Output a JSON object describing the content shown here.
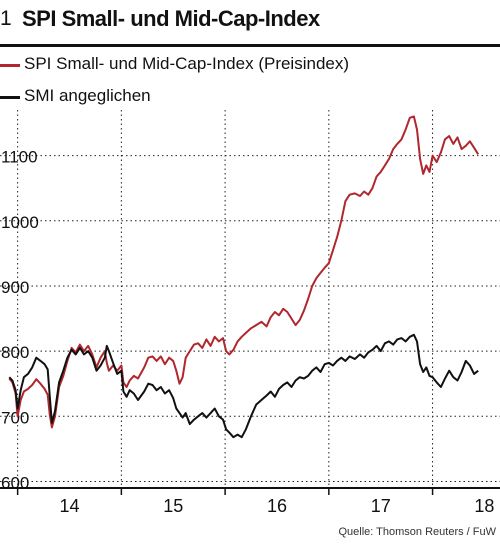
{
  "header": {
    "number": "1",
    "title": "SPI Small- und Mid-Cap-Index"
  },
  "legend": [
    {
      "label": "SPI Small- und Mid-Cap-Index (Preisindex)",
      "color": "#b0272d"
    },
    {
      "label": "SMI angeglichen",
      "color": "#111111"
    }
  ],
  "source": "Quelle: Thomson Reuters / FuW",
  "chart_data": {
    "type": "line",
    "title": "SPI Small- und Mid-Cap-Index",
    "xlabel": "",
    "ylabel": "",
    "ylim": [
      590,
      1170
    ],
    "xlim": [
      2013.83,
      2018.65
    ],
    "grid": true,
    "legend_position": "top-left",
    "y_ticks": [
      600,
      700,
      800,
      900,
      1000,
      1100
    ],
    "y_tick_labels": [
      "600",
      "700",
      "800",
      "900",
      "1000",
      "1100"
    ],
    "x_tick_labels": [
      {
        "label": "14",
        "x": 2014.5
      },
      {
        "label": "15",
        "x": 2015.5
      },
      {
        "label": "16",
        "x": 2016.5
      },
      {
        "label": "17",
        "x": 2017.5
      },
      {
        "label": "18",
        "x": 2018.5
      }
    ],
    "series": [
      {
        "name": "SPI Small- und Mid-Cap-Index (Preisindex)",
        "color": "#b0272d",
        "points": [
          [
            2013.92,
            758
          ],
          [
            2013.95,
            752
          ],
          [
            2013.98,
            735
          ],
          [
            2014.0,
            700
          ],
          [
            2014.03,
            725
          ],
          [
            2014.06,
            738
          ],
          [
            2014.1,
            742
          ],
          [
            2014.14,
            748
          ],
          [
            2014.18,
            757
          ],
          [
            2014.22,
            750
          ],
          [
            2014.26,
            742
          ],
          [
            2014.29,
            733
          ],
          [
            2014.31,
            702
          ],
          [
            2014.33,
            683
          ],
          [
            2014.36,
            700
          ],
          [
            2014.4,
            745
          ],
          [
            2014.44,
            762
          ],
          [
            2014.48,
            785
          ],
          [
            2014.52,
            805
          ],
          [
            2014.56,
            798
          ],
          [
            2014.6,
            810
          ],
          [
            2014.64,
            800
          ],
          [
            2014.68,
            808
          ],
          [
            2014.72,
            795
          ],
          [
            2014.76,
            775
          ],
          [
            2014.8,
            790
          ],
          [
            2014.84,
            800
          ],
          [
            2014.86,
            782
          ],
          [
            2014.88,
            770
          ],
          [
            2014.92,
            778
          ],
          [
            2014.96,
            770
          ],
          [
            2015.0,
            778
          ],
          [
            2015.02,
            752
          ],
          [
            2015.05,
            745
          ],
          [
            2015.08,
            755
          ],
          [
            2015.12,
            762
          ],
          [
            2015.16,
            758
          ],
          [
            2015.22,
            775
          ],
          [
            2015.26,
            790
          ],
          [
            2015.3,
            792
          ],
          [
            2015.34,
            785
          ],
          [
            2015.38,
            792
          ],
          [
            2015.42,
            780
          ],
          [
            2015.46,
            790
          ],
          [
            2015.5,
            785
          ],
          [
            2015.53,
            770
          ],
          [
            2015.56,
            750
          ],
          [
            2015.59,
            760
          ],
          [
            2015.62,
            790
          ],
          [
            2015.66,
            800
          ],
          [
            2015.7,
            810
          ],
          [
            2015.74,
            812
          ],
          [
            2015.78,
            805
          ],
          [
            2015.82,
            818
          ],
          [
            2015.86,
            808
          ],
          [
            2015.9,
            822
          ],
          [
            2015.94,
            815
          ],
          [
            2015.98,
            820
          ],
          [
            2016.01,
            800
          ],
          [
            2016.04,
            795
          ],
          [
            2016.08,
            802
          ],
          [
            2016.12,
            815
          ],
          [
            2016.16,
            822
          ],
          [
            2016.2,
            828
          ],
          [
            2016.25,
            835
          ],
          [
            2016.3,
            840
          ],
          [
            2016.35,
            845
          ],
          [
            2016.4,
            838
          ],
          [
            2016.44,
            852
          ],
          [
            2016.48,
            860
          ],
          [
            2016.52,
            855
          ],
          [
            2016.56,
            865
          ],
          [
            2016.6,
            860
          ],
          [
            2016.64,
            850
          ],
          [
            2016.68,
            840
          ],
          [
            2016.72,
            848
          ],
          [
            2016.76,
            862
          ],
          [
            2016.8,
            880
          ],
          [
            2016.84,
            900
          ],
          [
            2016.88,
            912
          ],
          [
            2016.92,
            920
          ],
          [
            2016.96,
            928
          ],
          [
            2017.0,
            935
          ],
          [
            2017.04,
            955
          ],
          [
            2017.08,
            975
          ],
          [
            2017.12,
            1000
          ],
          [
            2017.16,
            1030
          ],
          [
            2017.2,
            1040
          ],
          [
            2017.25,
            1042
          ],
          [
            2017.3,
            1038
          ],
          [
            2017.34,
            1045
          ],
          [
            2017.38,
            1040
          ],
          [
            2017.42,
            1050
          ],
          [
            2017.46,
            1068
          ],
          [
            2017.5,
            1075
          ],
          [
            2017.54,
            1085
          ],
          [
            2017.58,
            1095
          ],
          [
            2017.62,
            1110
          ],
          [
            2017.66,
            1118
          ],
          [
            2017.7,
            1125
          ],
          [
            2017.74,
            1140
          ],
          [
            2017.78,
            1158
          ],
          [
            2017.82,
            1160
          ],
          [
            2017.85,
            1140
          ],
          [
            2017.88,
            1095
          ],
          [
            2017.91,
            1072
          ],
          [
            2017.94,
            1085
          ],
          [
            2017.97,
            1075
          ],
          [
            2018.0,
            1100
          ],
          [
            2018.04,
            1090
          ],
          [
            2018.08,
            1105
          ],
          [
            2018.12,
            1125
          ],
          [
            2018.16,
            1130
          ],
          [
            2018.2,
            1118
          ],
          [
            2018.24,
            1128
          ],
          [
            2018.28,
            1110
          ],
          [
            2018.32,
            1115
          ],
          [
            2018.36,
            1122
          ],
          [
            2018.4,
            1112
          ],
          [
            2018.44,
            1102
          ]
        ]
      },
      {
        "name": "SMI angeglichen",
        "color": "#111111",
        "points": [
          [
            2013.92,
            760
          ],
          [
            2013.95,
            755
          ],
          [
            2013.98,
            740
          ],
          [
            2014.0,
            712
          ],
          [
            2014.03,
            740
          ],
          [
            2014.06,
            760
          ],
          [
            2014.1,
            765
          ],
          [
            2014.14,
            775
          ],
          [
            2014.18,
            790
          ],
          [
            2014.22,
            785
          ],
          [
            2014.26,
            780
          ],
          [
            2014.29,
            772
          ],
          [
            2014.31,
            730
          ],
          [
            2014.33,
            690
          ],
          [
            2014.36,
            708
          ],
          [
            2014.4,
            752
          ],
          [
            2014.44,
            770
          ],
          [
            2014.48,
            790
          ],
          [
            2014.52,
            802
          ],
          [
            2014.56,
            795
          ],
          [
            2014.6,
            805
          ],
          [
            2014.64,
            795
          ],
          [
            2014.68,
            800
          ],
          [
            2014.72,
            790
          ],
          [
            2014.76,
            770
          ],
          [
            2014.8,
            778
          ],
          [
            2014.84,
            790
          ],
          [
            2014.86,
            808
          ],
          [
            2014.88,
            800
          ],
          [
            2014.92,
            782
          ],
          [
            2014.96,
            765
          ],
          [
            2015.0,
            770
          ],
          [
            2015.02,
            738
          ],
          [
            2015.05,
            730
          ],
          [
            2015.08,
            740
          ],
          [
            2015.12,
            735
          ],
          [
            2015.16,
            725
          ],
          [
            2015.22,
            738
          ],
          [
            2015.26,
            750
          ],
          [
            2015.3,
            748
          ],
          [
            2015.34,
            740
          ],
          [
            2015.38,
            745
          ],
          [
            2015.42,
            735
          ],
          [
            2015.46,
            740
          ],
          [
            2015.5,
            728
          ],
          [
            2015.53,
            712
          ],
          [
            2015.56,
            705
          ],
          [
            2015.59,
            698
          ],
          [
            2015.62,
            705
          ],
          [
            2015.66,
            688
          ],
          [
            2015.7,
            695
          ],
          [
            2015.74,
            700
          ],
          [
            2015.78,
            705
          ],
          [
            2015.82,
            698
          ],
          [
            2015.86,
            705
          ],
          [
            2015.9,
            712
          ],
          [
            2015.94,
            700
          ],
          [
            2015.98,
            695
          ],
          [
            2016.01,
            680
          ],
          [
            2016.04,
            675
          ],
          [
            2016.08,
            668
          ],
          [
            2016.12,
            672
          ],
          [
            2016.16,
            668
          ],
          [
            2016.2,
            680
          ],
          [
            2016.25,
            700
          ],
          [
            2016.3,
            718
          ],
          [
            2016.35,
            725
          ],
          [
            2016.4,
            732
          ],
          [
            2016.44,
            738
          ],
          [
            2016.48,
            730
          ],
          [
            2016.52,
            742
          ],
          [
            2016.56,
            748
          ],
          [
            2016.6,
            752
          ],
          [
            2016.64,
            745
          ],
          [
            2016.68,
            755
          ],
          [
            2016.72,
            760
          ],
          [
            2016.76,
            758
          ],
          [
            2016.8,
            762
          ],
          [
            2016.84,
            770
          ],
          [
            2016.88,
            775
          ],
          [
            2016.92,
            768
          ],
          [
            2016.96,
            780
          ],
          [
            2017.0,
            782
          ],
          [
            2017.04,
            778
          ],
          [
            2017.08,
            785
          ],
          [
            2017.12,
            790
          ],
          [
            2017.16,
            785
          ],
          [
            2017.2,
            792
          ],
          [
            2017.25,
            788
          ],
          [
            2017.3,
            795
          ],
          [
            2017.34,
            790
          ],
          [
            2017.38,
            798
          ],
          [
            2017.42,
            802
          ],
          [
            2017.46,
            808
          ],
          [
            2017.5,
            800
          ],
          [
            2017.54,
            812
          ],
          [
            2017.58,
            815
          ],
          [
            2017.62,
            810
          ],
          [
            2017.66,
            818
          ],
          [
            2017.7,
            820
          ],
          [
            2017.74,
            815
          ],
          [
            2017.78,
            822
          ],
          [
            2017.82,
            825
          ],
          [
            2017.85,
            815
          ],
          [
            2017.88,
            780
          ],
          [
            2017.91,
            768
          ],
          [
            2017.94,
            775
          ],
          [
            2017.97,
            762
          ],
          [
            2018.0,
            760
          ],
          [
            2018.04,
            752
          ],
          [
            2018.08,
            745
          ],
          [
            2018.12,
            758
          ],
          [
            2018.16,
            770
          ],
          [
            2018.2,
            760
          ],
          [
            2018.24,
            755
          ],
          [
            2018.28,
            768
          ],
          [
            2018.32,
            785
          ],
          [
            2018.36,
            778
          ],
          [
            2018.4,
            765
          ],
          [
            2018.44,
            770
          ]
        ]
      }
    ]
  }
}
